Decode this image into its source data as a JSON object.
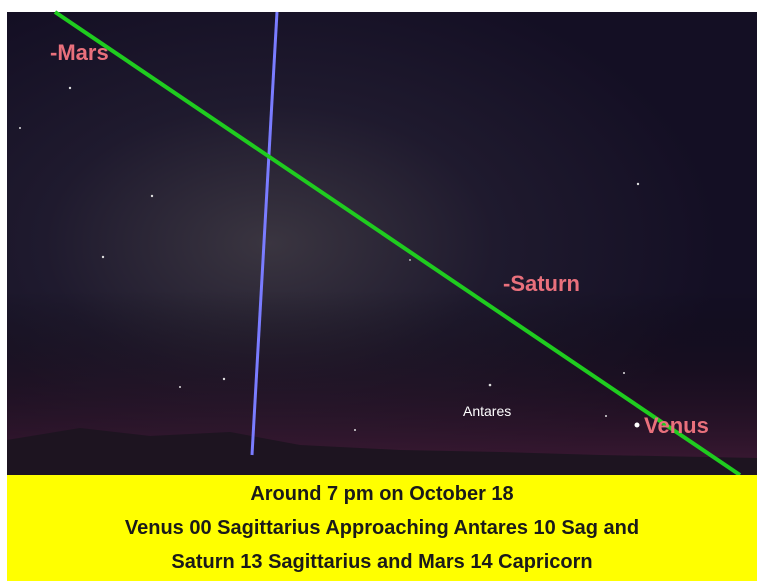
{
  "sky": {
    "labels": {
      "mars": "-Mars",
      "saturn": "-Saturn",
      "antares": "Antares",
      "venus": "Venus"
    }
  },
  "caption": {
    "lines": [
      "Around 7 pm on October 18",
      "Venus 00 Sagittarius Approaching Antares 10 Sag and",
      "Saturn 13 Sagittarius and Mars 14 Capricorn"
    ]
  }
}
